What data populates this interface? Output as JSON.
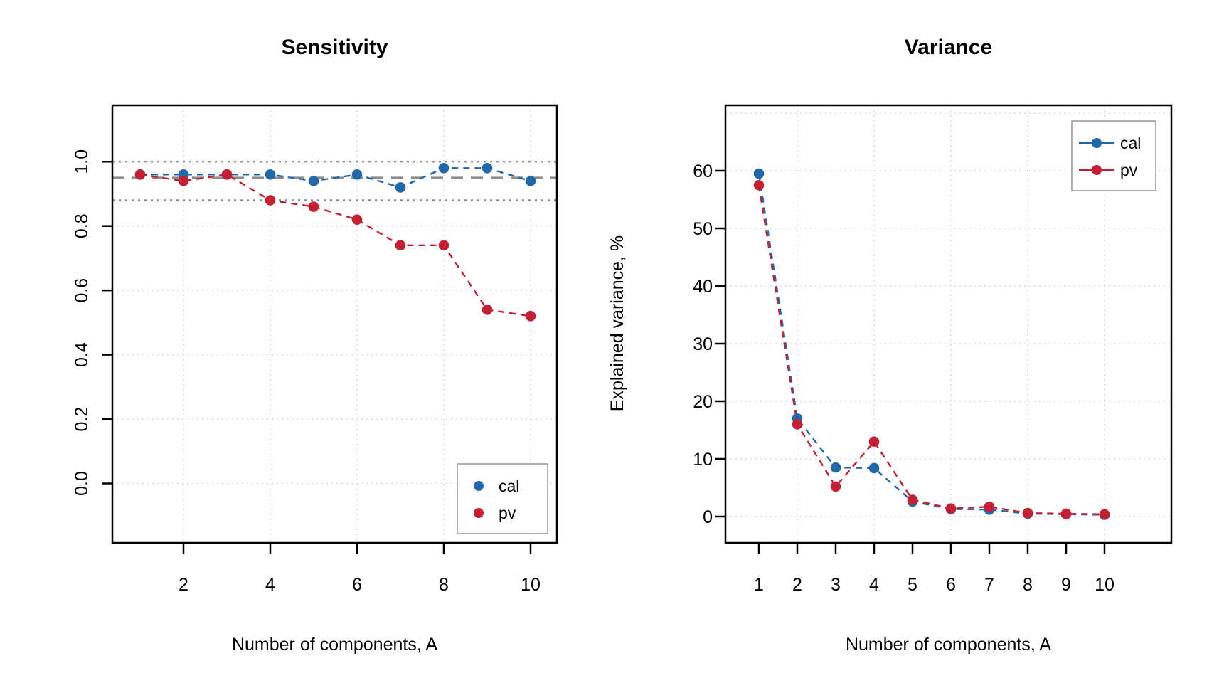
{
  "figure_background": "#ffffff",
  "colors": {
    "cal": "#2268a9",
    "pv": "#c42034",
    "frame": "#000000",
    "grid": "#dedede",
    "reference_line": "#8c8c8c",
    "legend_border": "#b0b0b0"
  },
  "chart_data": [
    {
      "type": "line",
      "title": "Sensitivity",
      "xlabel": "Number of components, A",
      "ylabel": "",
      "x": [
        1,
        2,
        3,
        4,
        5,
        6,
        7,
        8,
        9,
        10
      ],
      "series": [
        {
          "name": "cal",
          "color": "#2268a9",
          "values": [
            0.96,
            0.96,
            0.96,
            0.96,
            0.94,
            0.96,
            0.92,
            0.98,
            0.98,
            0.94
          ]
        },
        {
          "name": "pv",
          "color": "#c42034",
          "values": [
            0.96,
            0.94,
            0.96,
            0.88,
            0.86,
            0.82,
            0.74,
            0.74,
            0.54,
            0.52
          ]
        }
      ],
      "reference_lines": [
        {
          "value": 1.0,
          "style": "dotted"
        },
        {
          "value": 0.95,
          "style": "dashed"
        },
        {
          "value": 0.88,
          "style": "dotted"
        }
      ],
      "x_ticks": {
        "values": [
          2,
          4,
          6,
          8,
          10
        ],
        "labels": [
          "2",
          "4",
          "6",
          "8",
          "10"
        ]
      },
      "y_ticks": {
        "values": [
          0,
          0.2,
          0.4,
          0.6,
          0.8,
          1.0
        ],
        "labels": [
          "0.0",
          "0.2",
          "0.4",
          "0.6",
          "0.8",
          "1.0"
        ]
      },
      "grid_x": [
        2,
        4,
        6,
        8,
        10
      ],
      "grid_y": [
        0,
        0.2,
        0.4,
        0.6,
        0.8,
        1.0
      ],
      "ylim": [
        -0.19,
        1.18
      ],
      "xlim": [
        0.36,
        10.64
      ],
      "grid": true,
      "legend": {
        "position": "bottom-right",
        "entries": [
          "cal",
          "pv"
        ]
      }
    },
    {
      "type": "line",
      "title": "Variance",
      "xlabel": "Number of components, A",
      "ylabel": "Explained variance, %",
      "x": [
        1,
        2,
        3,
        4,
        5,
        6,
        7,
        8,
        9,
        10
      ],
      "series": [
        {
          "name": "cal",
          "color": "#2268a9",
          "values": [
            59.5,
            17,
            8.5,
            8.4,
            2.6,
            1.3,
            1.2,
            0.5,
            0.4,
            0.3
          ]
        },
        {
          "name": "pv",
          "color": "#c42034",
          "values": [
            57.5,
            16,
            5.2,
            13,
            2.9,
            1.4,
            1.7,
            0.6,
            0.5,
            0.4
          ]
        }
      ],
      "reference_lines": [],
      "x_ticks": {
        "values": [
          1,
          2,
          3,
          4,
          5,
          6,
          7,
          8,
          9,
          10
        ],
        "labels": [
          "1",
          "2",
          "3",
          "4",
          "5",
          "6",
          "7",
          "8",
          "9",
          "10"
        ]
      },
      "y_ticks": {
        "values": [
          0,
          10,
          20,
          30,
          40,
          50,
          60
        ],
        "labels": [
          "0",
          "10",
          "20",
          "30",
          "40",
          "50",
          "60"
        ]
      },
      "grid_x": [
        2,
        4,
        6,
        8,
        10
      ],
      "grid_y": [
        0,
        10,
        20,
        30,
        40,
        50,
        60,
        70
      ],
      "ylim": [
        -4.6,
        71.4
      ],
      "xlim": [
        0.13,
        11.74
      ],
      "grid": true,
      "legend": {
        "position": "top-right",
        "entries": [
          "cal",
          "pv"
        ]
      }
    }
  ]
}
